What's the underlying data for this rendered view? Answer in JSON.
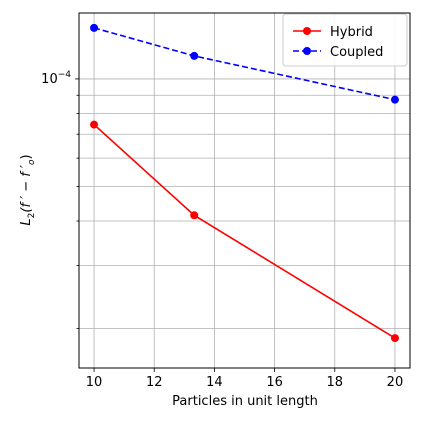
{
  "chart_data": {
    "type": "line",
    "xlabel": "Particles in unit length",
    "ylabel_main": "L",
    "ylabel_sub": "2",
    "ylabel_rest": "(f ′ − f ′",
    "ylabel_sub2": "o",
    "ylabel_close": ")",
    "x_ticks": [
      "10",
      "12",
      "14",
      "16",
      "18",
      "20"
    ],
    "x_tick_values": [
      10,
      12,
      14,
      16,
      18,
      20
    ],
    "y_tick_base": "10",
    "y_tick_exp": "−4",
    "y_tick_value": 0.0001,
    "xlim": [
      9.5,
      20.5
    ],
    "ylim": [
      1.55e-05,
      0.000153
    ],
    "y_scale": "log",
    "grid": true,
    "legend_placement": "top-right",
    "series": [
      {
        "name": "Hybrid",
        "color": "#ff0000",
        "line_style": "solid",
        "x": [
          10,
          13.33,
          20
        ],
        "y": [
          7.45e-05,
          4.15e-05,
          1.88e-05
        ]
      },
      {
        "name": "Coupled",
        "color": "#0000ff",
        "line_style": "dashed",
        "x": [
          10,
          13.33,
          20
        ],
        "y": [
          0.000139,
          0.000116,
          8.75e-05
        ]
      }
    ]
  }
}
